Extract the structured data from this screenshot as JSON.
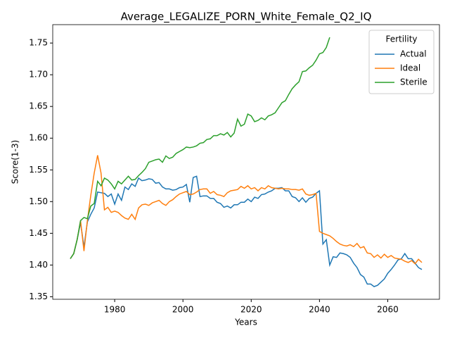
{
  "chart_data": {
    "type": "line",
    "title": "Average_LEGALIZE_PORN_White_Female_Q2_IQ",
    "x_label": "Years",
    "y_label": "Score(1-3)",
    "legend_title": "Fertility",
    "legend_loc": "upper right",
    "grid": false,
    "x": [
      1967,
      1968,
      1969,
      1970,
      1971,
      1972,
      1973,
      1974,
      1975,
      1976,
      1977,
      1978,
      1979,
      1980,
      1981,
      1982,
      1983,
      1984,
      1985,
      1986,
      1987,
      1988,
      1989,
      1990,
      1991,
      1992,
      1993,
      1994,
      1995,
      1996,
      1997,
      1998,
      1999,
      2000,
      2001,
      2002,
      2003,
      2004,
      2005,
      2006,
      2007,
      2008,
      2009,
      2010,
      2011,
      2012,
      2013,
      2014,
      2015,
      2016,
      2017,
      2018,
      2019,
      2020,
      2021,
      2022,
      2023,
      2024,
      2025,
      2026,
      2027,
      2028,
      2029,
      2030,
      2031,
      2032,
      2033,
      2034,
      2035,
      2036,
      2037,
      2038,
      2039,
      2040,
      2041,
      2042,
      2043,
      2044,
      2045,
      2046,
      2047,
      2048,
      2049,
      2050,
      2051,
      2052,
      2053,
      2054,
      2055,
      2056,
      2057,
      2058,
      2059,
      2060,
      2061,
      2062,
      2063,
      2064,
      2065,
      2066,
      2067,
      2068,
      2069,
      2070
    ],
    "xlim": [
      1961.85,
      2075.15
    ],
    "xticks": [
      1980,
      2000,
      2020,
      2040,
      2060
    ],
    "ylim": [
      1.346,
      1.779
    ],
    "yticks": [
      1.35,
      {
        "value": 1.4,
        "label": "1.40"
      },
      1.45,
      {
        "value": 1.5,
        "label": "1.50"
      },
      1.55,
      {
        "value": 1.6,
        "label": "1.60"
      },
      1.65,
      {
        "value": 1.7,
        "label": "1.70"
      },
      1.75
    ],
    "series": [
      {
        "name": "Actual",
        "color": "#1f77b4",
        "values": [
          1.41,
          1.418,
          1.44,
          1.467,
          1.428,
          1.468,
          1.48,
          1.49,
          1.515,
          1.514,
          1.513,
          1.508,
          1.512,
          1.496,
          1.512,
          1.502,
          1.523,
          1.519,
          1.528,
          1.524,
          1.537,
          1.533,
          1.534,
          1.536,
          1.535,
          1.529,
          1.53,
          1.523,
          1.52,
          1.52,
          1.518,
          1.519,
          1.522,
          1.523,
          1.527,
          1.499,
          1.538,
          1.54,
          1.508,
          1.509,
          1.509,
          1.505,
          1.505,
          1.499,
          1.497,
          1.491,
          1.493,
          1.49,
          1.495,
          1.495,
          1.499,
          1.499,
          1.504,
          1.5,
          1.507,
          1.505,
          1.511,
          1.512,
          1.515,
          1.517,
          1.521,
          1.521,
          1.522,
          1.517,
          1.517,
          1.508,
          1.506,
          1.5,
          1.506,
          1.499,
          1.505,
          1.507,
          1.513,
          1.517,
          1.433,
          1.44,
          1.4,
          1.413,
          1.412,
          1.419,
          1.418,
          1.416,
          1.412,
          1.403,
          1.396,
          1.385,
          1.381,
          1.37,
          1.37,
          1.366,
          1.368,
          1.373,
          1.378,
          1.387,
          1.393,
          1.4,
          1.408,
          1.41,
          1.418,
          1.41,
          1.41,
          1.403,
          1.396,
          1.393
        ]
      },
      {
        "name": "Ideal",
        "color": "#ff7f0e",
        "values": [
          1.41,
          1.418,
          1.44,
          1.47,
          1.422,
          1.47,
          1.51,
          1.545,
          1.573,
          1.545,
          1.487,
          1.491,
          1.483,
          1.485,
          1.483,
          1.478,
          1.474,
          1.472,
          1.48,
          1.472,
          1.49,
          1.495,
          1.496,
          1.494,
          1.498,
          1.5,
          1.502,
          1.497,
          1.494,
          1.5,
          1.503,
          1.508,
          1.512,
          1.514,
          1.516,
          1.511,
          1.512,
          1.515,
          1.519,
          1.52,
          1.52,
          1.513,
          1.516,
          1.511,
          1.51,
          1.508,
          1.514,
          1.517,
          1.518,
          1.519,
          1.524,
          1.521,
          1.525,
          1.52,
          1.522,
          1.517,
          1.522,
          1.52,
          1.525,
          1.522,
          1.521,
          1.52,
          1.521,
          1.52,
          1.52,
          1.519,
          1.519,
          1.518,
          1.52,
          1.512,
          1.51,
          1.511,
          1.513,
          1.453,
          1.45,
          1.448,
          1.446,
          1.442,
          1.437,
          1.433,
          1.431,
          1.43,
          1.432,
          1.429,
          1.434,
          1.427,
          1.429,
          1.419,
          1.418,
          1.412,
          1.416,
          1.411,
          1.417,
          1.412,
          1.415,
          1.411,
          1.41,
          1.409,
          1.406,
          1.404,
          1.407,
          1.402,
          1.409,
          1.404
        ]
      },
      {
        "name": "Sterile",
        "color": "#2ca02c",
        "values": [
          1.41,
          1.418,
          1.44,
          1.47,
          1.475,
          1.473,
          1.493,
          1.497,
          1.532,
          1.525,
          1.537,
          1.534,
          1.528,
          1.52,
          1.532,
          1.528,
          1.534,
          1.54,
          1.534,
          1.535,
          1.541,
          1.546,
          1.552,
          1.562,
          1.564,
          1.566,
          1.567,
          1.562,
          1.572,
          1.568,
          1.57,
          1.576,
          1.579,
          1.582,
          1.586,
          1.585,
          1.586,
          1.588,
          1.592,
          1.593,
          1.598,
          1.599,
          1.604,
          1.604,
          1.607,
          1.605,
          1.609,
          1.602,
          1.608,
          1.63,
          1.619,
          1.622,
          1.638,
          1.635,
          1.626,
          1.628,
          1.632,
          1.629,
          1.635,
          1.637,
          1.64,
          1.648,
          1.656,
          1.659,
          1.669,
          1.678,
          1.684,
          1.689,
          1.705,
          1.706,
          1.711,
          1.715,
          1.723,
          1.733,
          1.735,
          1.743,
          1.759,
          null,
          null,
          null,
          null,
          null,
          null,
          null,
          null,
          null,
          null,
          null,
          null,
          null,
          null,
          null,
          null,
          null,
          null,
          null,
          null,
          null,
          null,
          null,
          null,
          null,
          null,
          null
        ]
      }
    ]
  }
}
